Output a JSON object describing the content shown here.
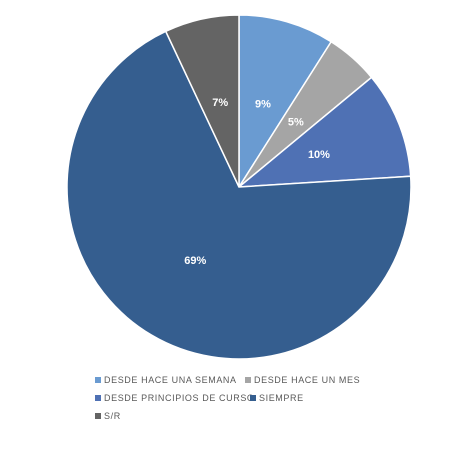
{
  "chart_data": {
    "type": "pie",
    "categories": [
      "DESDE HACE UNA SEMANA",
      "DESDE HACE UN MES",
      "DESDE PRINCIPIOS DE CURSO",
      "SIEMPRE",
      "S/R"
    ],
    "values": [
      9,
      5,
      10,
      69,
      7
    ],
    "value_labels": [
      "9%",
      "5%",
      "10%",
      "69%",
      "7%"
    ],
    "colors": [
      "#6a9bd1",
      "#a5a5a5",
      "#4f71b4",
      "#355e8f",
      "#646464"
    ]
  }
}
